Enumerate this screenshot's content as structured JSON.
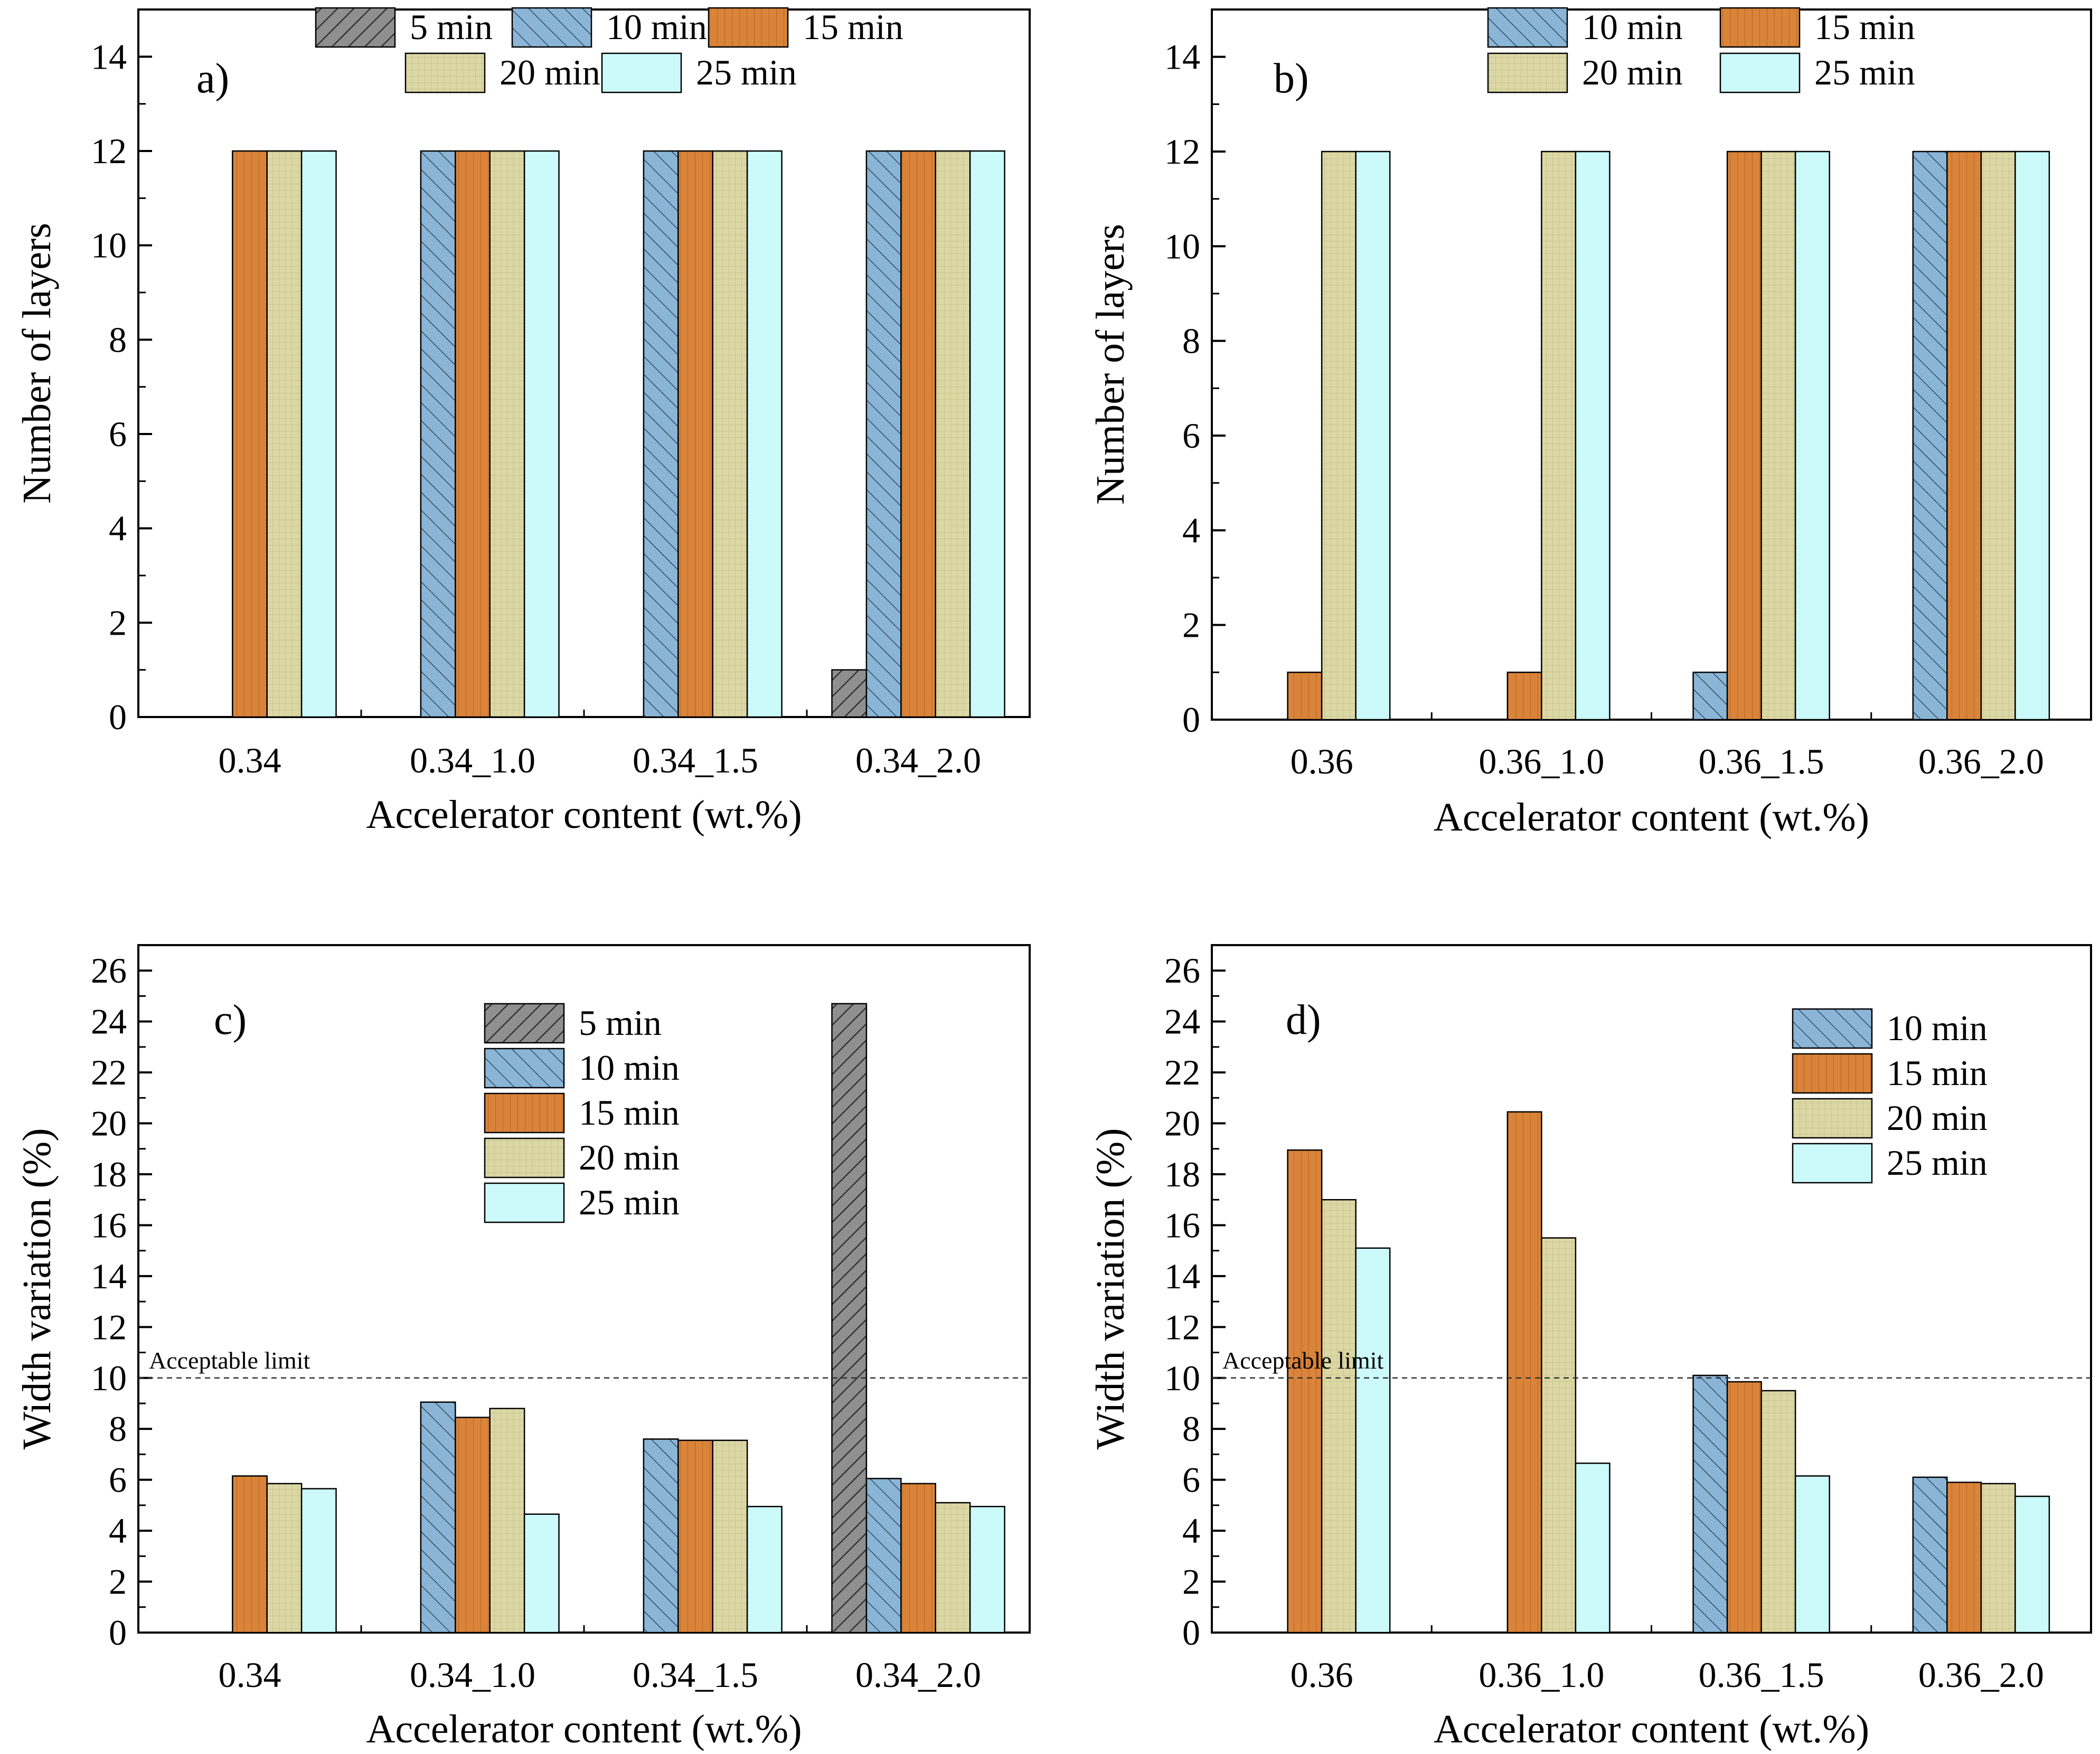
{
  "colors": {
    "5 min": "#8f8f8f",
    "10 min": "#8ab5d6",
    "15 min": "#d9843a",
    "20 min": "#dcd8a6",
    "25 min": "#ccfafa"
  },
  "chart_data": [
    {
      "type": "bar",
      "panel": "a)",
      "xlabel": "Accelerator content (wt.%)",
      "ylabel": "Number of layers",
      "ylim": [
        0,
        15
      ],
      "yticks": [
        0,
        2,
        4,
        6,
        8,
        10,
        12,
        14
      ],
      "categories": [
        "0.34",
        "0.34_1.0",
        "0.34_1.5",
        "0.34_2.0"
      ],
      "legend": [
        "5 min",
        "10 min",
        "15 min",
        "20 min",
        "25 min"
      ],
      "series": [
        {
          "name": "5 min",
          "values": [
            null,
            null,
            null,
            1
          ]
        },
        {
          "name": "10 min",
          "values": [
            null,
            12,
            12,
            12
          ]
        },
        {
          "name": "15 min",
          "values": [
            12,
            12,
            12,
            12
          ]
        },
        {
          "name": "20 min",
          "values": [
            12,
            12,
            12,
            12
          ]
        },
        {
          "name": "25 min",
          "values": [
            12,
            12,
            12,
            12
          ]
        }
      ]
    },
    {
      "type": "bar",
      "panel": "b)",
      "xlabel": "Accelerator content (wt.%)",
      "ylabel": "Number of layers",
      "ylim": [
        0,
        15
      ],
      "yticks": [
        0,
        2,
        4,
        6,
        8,
        10,
        12,
        14
      ],
      "categories": [
        "0.36",
        "0.36_1.0",
        "0.36_1.5",
        "0.36_2.0"
      ],
      "legend": [
        "10 min",
        "15 min",
        "20 min",
        "25 min"
      ],
      "series": [
        {
          "name": "10 min",
          "values": [
            null,
            null,
            1,
            12
          ]
        },
        {
          "name": "15 min",
          "values": [
            1,
            1,
            12,
            12
          ]
        },
        {
          "name": "20 min",
          "values": [
            12,
            12,
            12,
            12
          ]
        },
        {
          "name": "25 min",
          "values": [
            12,
            12,
            12,
            12
          ]
        }
      ]
    },
    {
      "type": "bar",
      "panel": "c)",
      "xlabel": "Accelerator content (wt.%)",
      "ylabel": "Width variation (%)",
      "ylim": [
        0,
        27
      ],
      "yticks": [
        0,
        2,
        4,
        6,
        8,
        10,
        12,
        14,
        16,
        18,
        20,
        22,
        24,
        26
      ],
      "reference_line": {
        "value": 10,
        "label": "Acceptable limit"
      },
      "categories": [
        "0.34",
        "0.34_1.0",
        "0.34_1.5",
        "0.34_2.0"
      ],
      "legend": [
        "5 min",
        "10 min",
        "15 min",
        "20 min",
        "25 min"
      ],
      "series": [
        {
          "name": "5 min",
          "values": [
            null,
            null,
            null,
            24.7
          ]
        },
        {
          "name": "10 min",
          "values": [
            null,
            9.05,
            7.6,
            6.05
          ]
        },
        {
          "name": "15 min",
          "values": [
            6.15,
            8.45,
            7.55,
            5.85
          ]
        },
        {
          "name": "20 min",
          "values": [
            5.85,
            8.8,
            7.55,
            5.1
          ]
        },
        {
          "name": "25 min",
          "values": [
            5.65,
            4.65,
            4.95,
            4.95
          ]
        }
      ]
    },
    {
      "type": "bar",
      "panel": "d)",
      "xlabel": "Accelerator content (wt.%)",
      "ylabel": "Width variation (%)",
      "ylim": [
        0,
        27
      ],
      "yticks": [
        0,
        2,
        4,
        6,
        8,
        10,
        12,
        14,
        16,
        18,
        20,
        22,
        24,
        26
      ],
      "reference_line": {
        "value": 10,
        "label": "Acceptable limit"
      },
      "categories": [
        "0.36",
        "0.36_1.0",
        "0.36_1.5",
        "0.36_2.0"
      ],
      "legend": [
        "10 min",
        "15 min",
        "20 min",
        "25 min"
      ],
      "series": [
        {
          "name": "10 min",
          "values": [
            null,
            null,
            10.1,
            6.1
          ]
        },
        {
          "name": "15 min",
          "values": [
            18.95,
            20.45,
            9.85,
            5.9
          ]
        },
        {
          "name": "20 min",
          "values": [
            17.0,
            15.5,
            9.5,
            5.85
          ]
        },
        {
          "name": "25 min",
          "values": [
            15.1,
            6.65,
            6.15,
            5.35
          ]
        }
      ]
    }
  ]
}
